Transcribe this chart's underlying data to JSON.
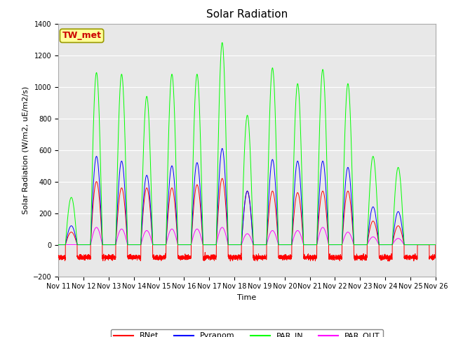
{
  "title": "Solar Radiation",
  "ylabel": "Solar Radiation (W/m2, uE/m2/s)",
  "xlabel": "Time",
  "ylim": [
    -200,
    1400
  ],
  "yticks": [
    -200,
    0,
    200,
    400,
    600,
    800,
    1000,
    1200,
    1400
  ],
  "n_days": 15,
  "colors": {
    "RNet": "#ff0000",
    "Pyranom": "#0000ff",
    "PAR_IN": "#00ff00",
    "PAR_OUT": "#ff00ff"
  },
  "site_label": "TW_met",
  "site_label_color": "#cc0000",
  "site_label_bg": "#ffff99",
  "site_label_border": "#999900",
  "background_color": "#e8e8e8",
  "grid_color": "#ffffff",
  "title_fontsize": 11,
  "axis_fontsize": 8,
  "tick_fontsize": 7,
  "legend_fontsize": 8,
  "par_in_peaks": [
    300,
    1090,
    1080,
    940,
    1080,
    1080,
    1280,
    820,
    1120,
    1020,
    1110,
    1020,
    560,
    490,
    0
  ],
  "pyranom_peaks": [
    120,
    560,
    530,
    440,
    500,
    520,
    610,
    340,
    540,
    530,
    530,
    490,
    240,
    210,
    0
  ],
  "rnet_peaks": [
    80,
    400,
    360,
    360,
    360,
    380,
    420,
    340,
    340,
    330,
    340,
    340,
    150,
    120,
    0
  ],
  "par_out_peaks": [
    0,
    110,
    100,
    90,
    100,
    100,
    110,
    70,
    90,
    90,
    110,
    80,
    50,
    40,
    0
  ]
}
